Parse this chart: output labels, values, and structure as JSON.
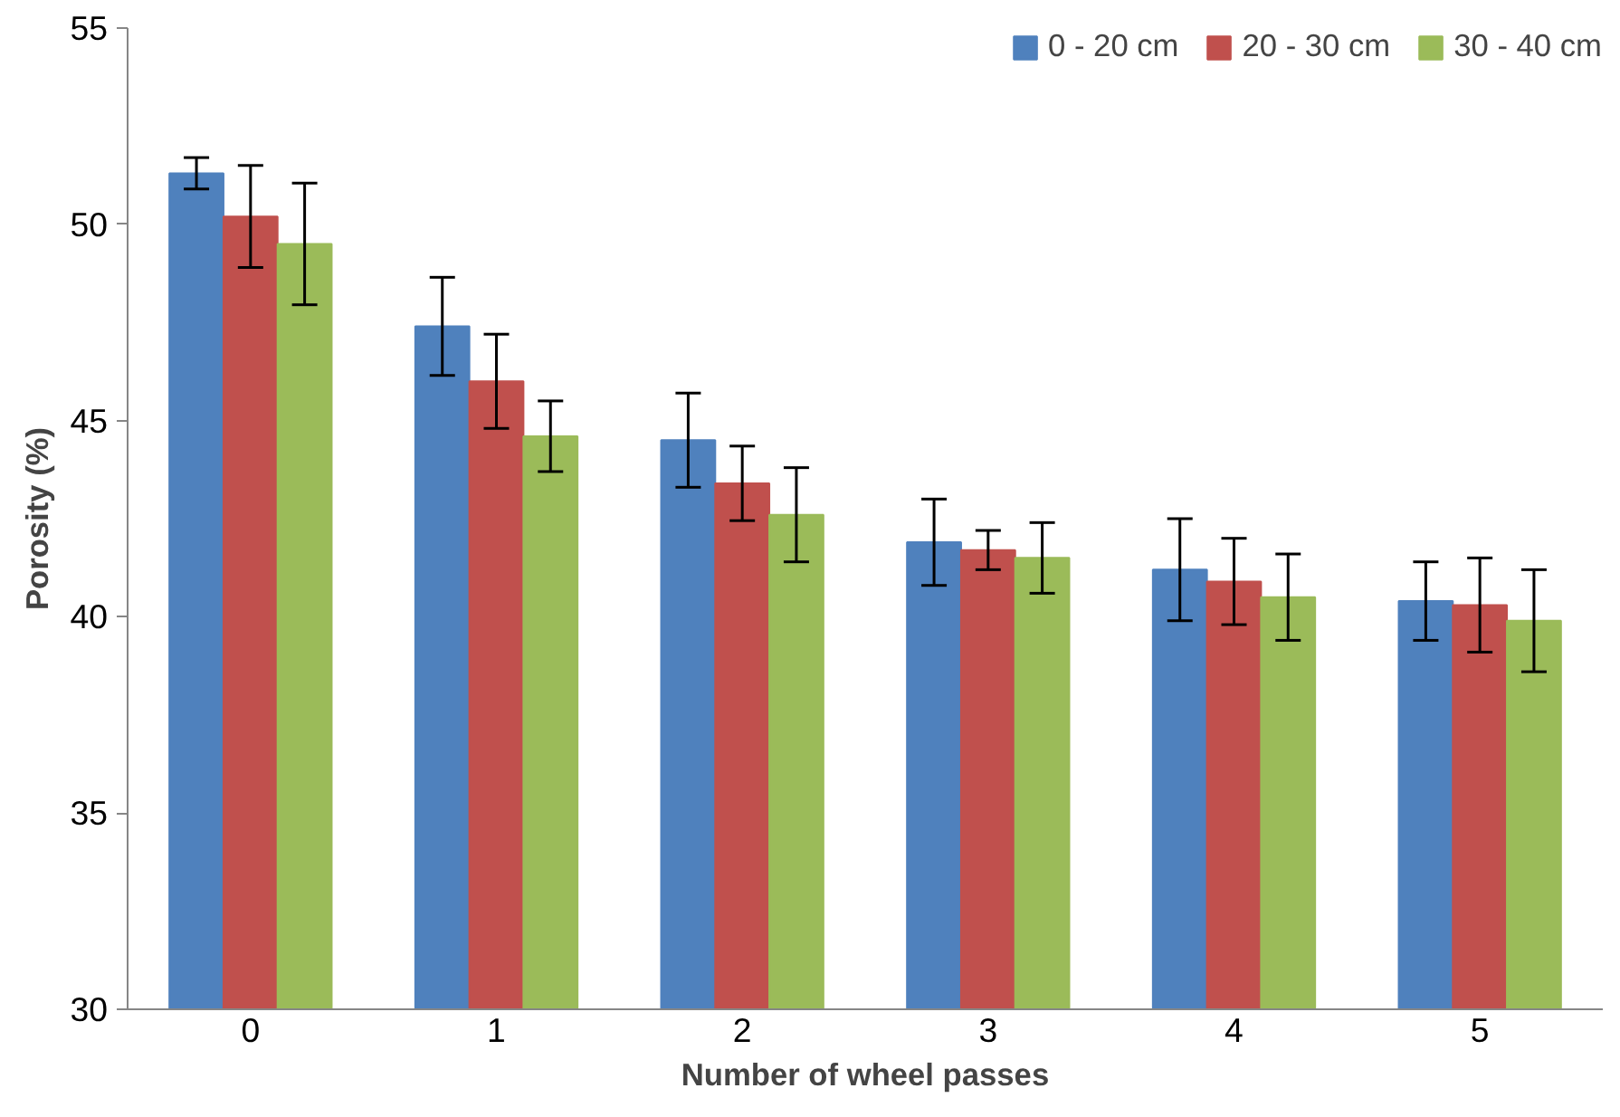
{
  "chart_data": {
    "type": "bar",
    "xlabel": "Number of wheel passes",
    "ylabel": "Porosity (%)",
    "categories": [
      "0",
      "1",
      "2",
      "3",
      "4",
      "5"
    ],
    "series": [
      {
        "name": "0 - 20 cm",
        "color": "#4f81bd",
        "values": [
          51.3,
          47.4,
          44.5,
          41.9,
          41.2,
          40.4
        ],
        "errors": [
          0.4,
          1.25,
          1.2,
          1.1,
          1.3,
          1.0
        ]
      },
      {
        "name": "20 - 30 cm",
        "color": "#c0504d",
        "values": [
          50.2,
          46.0,
          43.4,
          41.7,
          40.9,
          40.3
        ],
        "errors": [
          1.3,
          1.2,
          0.95,
          0.5,
          1.1,
          1.2
        ]
      },
      {
        "name": "30 - 40 cm",
        "color": "#9bbb59",
        "values": [
          49.5,
          44.6,
          42.6,
          41.5,
          40.5,
          39.9
        ],
        "errors": [
          1.55,
          0.9,
          1.2,
          0.9,
          1.1,
          1.3
        ]
      }
    ],
    "ylim": [
      30,
      55
    ],
    "yticks": [
      30,
      35,
      40,
      45,
      50,
      55
    ],
    "grid": false,
    "legend": "top right"
  }
}
